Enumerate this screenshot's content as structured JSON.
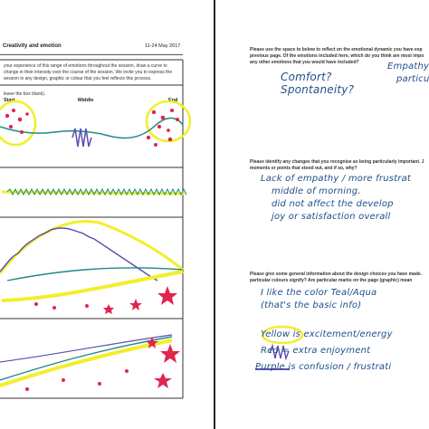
{
  "left_page": {
    "title": "Creativity and emotion",
    "date": "11-24 May 2017",
    "instructions": [
      "your experience of this range of emotions throughout the session, draw a curve to",
      "change in their intensity over the course of the session. We invite you to express the",
      "session in any design, graphic or colour that you feel reflects this process."
    ],
    "leave_blank_note": "leave the box blank).",
    "timeline_labels": {
      "start": "Start",
      "middle": "Middle",
      "end": "End"
    }
  },
  "right_page": {
    "q1": [
      "Please use the space to below to reflect on the emotional dynamic you have exp",
      "previous page. Of the emotions included here, which do you think are most impo",
      "any other emotions that you would have included?"
    ],
    "a1": [
      "Comfort?",
      "Spontaneity?",
      "Empathy +",
      "particula"
    ],
    "q2": [
      "Please identify any changes that you recognise as being particularly important. J",
      "moments or points that stood out, and if so, why?"
    ],
    "a2": [
      "Lack of empathy / more frustrat",
      "middle of morning.",
      "did not affect the develop",
      "joy or satisfaction overall"
    ],
    "q3": [
      "Please give some general information about the design choices you have made.",
      "particular colours signify? Are particular marks on the page (graphic) mean"
    ],
    "a3": [
      "I like the color Teal/Aqua",
      "(that's the basic info)",
      "Yellow is excitement/energy",
      "Red = extra enjoyment",
      "Purple is confusion / frustrati"
    ]
  },
  "colors": {
    "yellow": "#f2ef2a",
    "teal": "#1d8a82",
    "purple": "#5a4fb0",
    "red": "#e0254f",
    "ink": "#1e4f8a"
  }
}
